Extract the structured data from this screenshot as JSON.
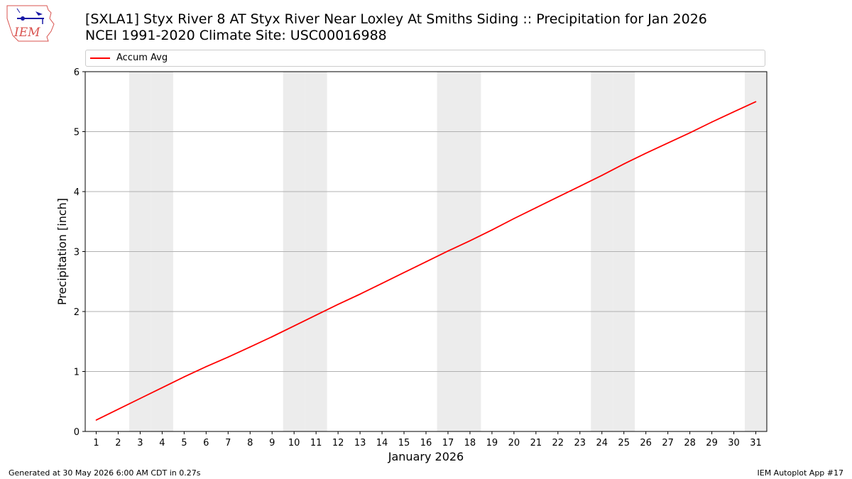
{
  "logo": {
    "text": "IEM"
  },
  "header": {
    "title_line1": "[SXLA1] Styx River 8 AT Styx River Near Loxley  At Smiths Siding :: Precipitation for Jan 2026",
    "title_line2": "NCEI 1991-2020 Climate Site: USC00016988"
  },
  "legend": {
    "label": "Accum Avg"
  },
  "footer": {
    "generated": "Generated at 30 May 2026 6:00 AM CDT in 0.27s",
    "app": "IEM Autoplot App #17"
  },
  "colors": {
    "line": "#ff0000",
    "weekend_band": "#ececec",
    "grid": "#b0b0b0"
  },
  "chart_data": {
    "type": "line",
    "xlabel": "January 2026",
    "ylabel": "Precipitation [inch]",
    "x": [
      1,
      2,
      3,
      4,
      5,
      6,
      7,
      8,
      9,
      10,
      11,
      12,
      13,
      14,
      15,
      16,
      17,
      18,
      19,
      20,
      21,
      22,
      23,
      24,
      25,
      26,
      27,
      28,
      29,
      30,
      31
    ],
    "x_tick_labels": [
      "1",
      "2",
      "3",
      "4",
      "5",
      "6",
      "7",
      "8",
      "9",
      "10",
      "11",
      "12",
      "13",
      "14",
      "15",
      "16",
      "17",
      "18",
      "19",
      "20",
      "21",
      "22",
      "23",
      "24",
      "25",
      "26",
      "27",
      "28",
      "29",
      "30",
      "31"
    ],
    "y_ticks": [
      0,
      1,
      2,
      3,
      4,
      5,
      6
    ],
    "ylim": [
      0,
      6
    ],
    "xlim": [
      0.5,
      31.5
    ],
    "grid": "horizontal",
    "legend_position": "top",
    "weekend_days": [
      3,
      4,
      10,
      11,
      17,
      18,
      24,
      25,
      31
    ],
    "series": [
      {
        "name": "Accum Avg",
        "color": "#ff0000",
        "values": [
          0.19,
          0.37,
          0.55,
          0.73,
          0.91,
          1.08,
          1.24,
          1.41,
          1.58,
          1.76,
          1.94,
          2.12,
          2.29,
          2.47,
          2.65,
          2.83,
          3.01,
          3.18,
          3.36,
          3.55,
          3.73,
          3.91,
          4.09,
          4.27,
          4.46,
          4.64,
          4.81,
          4.98,
          5.16,
          5.33,
          5.5
        ]
      }
    ]
  }
}
